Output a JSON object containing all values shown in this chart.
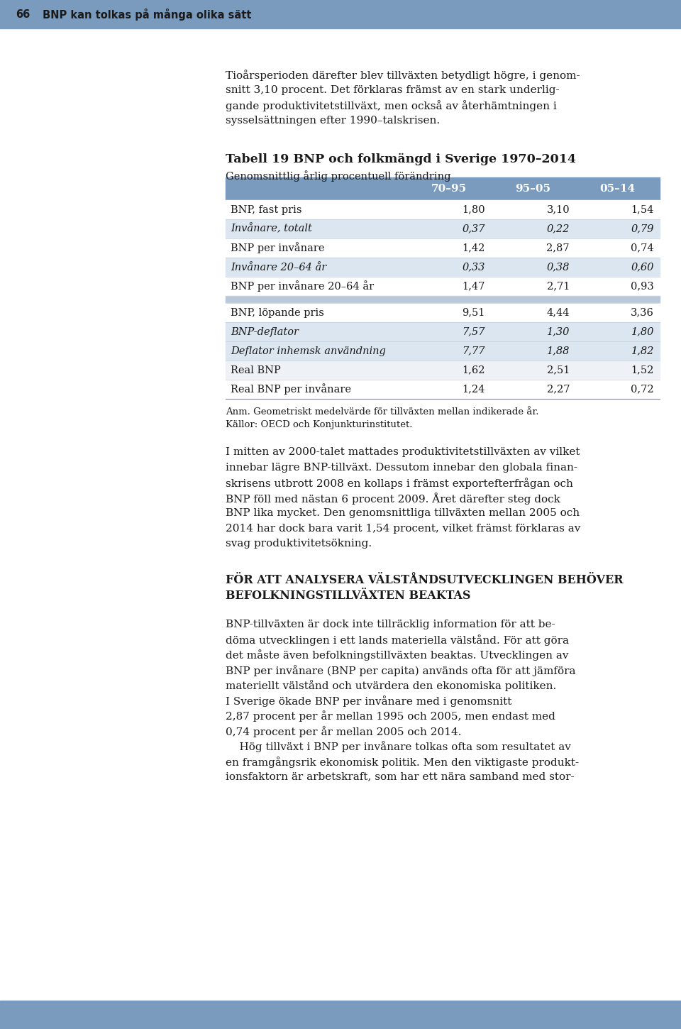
{
  "page_num": "66",
  "page_header": "BNP kan tolkas på många olika sätt",
  "header_bar_color": "#7a9bbe",
  "footer_bar_color": "#7a9bbe",
  "intro_text_lines": [
    "Tioårsperioden därefter blev tillväxten betydligt högre, i genom-",
    "snitt 3,10 procent. Det förklaras främst av en stark underlig-",
    "gande produktivitetstillväxt, men också av återhämtningen i",
    "sysselsättningen efter 1990–talskrisen."
  ],
  "table_title": "Tabell 19 BNP och folkmängd i Sverige 1970–2014",
  "table_subtitle": "Genomsnittlig årlig procentuell förändring",
  "table_header_color": "#7a9bbe",
  "table_header_text_color": "#ffffff",
  "table_alt_row_color": "#dce6f0",
  "table_white_row_color": "#ffffff",
  "table_light_row_color": "#eef2f7",
  "table_spacer_color": "#b8c8d8",
  "table_separator_color": "#c8d4de",
  "col_headers": [
    "",
    "70–95",
    "95–05",
    "05–14"
  ],
  "rows": [
    {
      "label": "BNP, fast pris",
      "vals": [
        "1,80",
        "3,10",
        "1,54"
      ],
      "italic": false,
      "bg": "white"
    },
    {
      "label": "Invånare, totalt",
      "vals": [
        "0,37",
        "0,22",
        "0,79"
      ],
      "italic": true,
      "bg": "alt"
    },
    {
      "label": "BNP per invånare",
      "vals": [
        "1,42",
        "2,87",
        "0,74"
      ],
      "italic": false,
      "bg": "white"
    },
    {
      "label": "Invånare 20–64 år",
      "vals": [
        "0,33",
        "0,38",
        "0,60"
      ],
      "italic": true,
      "bg": "alt"
    },
    {
      "label": "BNP per invånare 20–64 år",
      "vals": [
        "1,47",
        "2,71",
        "0,93"
      ],
      "italic": false,
      "bg": "white"
    },
    {
      "label": "",
      "vals": [
        "",
        "",
        ""
      ],
      "italic": false,
      "bg": "spacer"
    },
    {
      "label": "BNP, löpande pris",
      "vals": [
        "9,51",
        "4,44",
        "3,36"
      ],
      "italic": false,
      "bg": "white"
    },
    {
      "label": "BNP-deflator",
      "vals": [
        "7,57",
        "1,30",
        "1,80"
      ],
      "italic": true,
      "bg": "alt"
    },
    {
      "label": "Deflator inhemsk användning",
      "vals": [
        "7,77",
        "1,88",
        "1,82"
      ],
      "italic": true,
      "bg": "alt"
    },
    {
      "label": "Real BNP",
      "vals": [
        "1,62",
        "2,51",
        "1,52"
      ],
      "italic": false,
      "bg": "light"
    },
    {
      "label": "Real BNP per invånare",
      "vals": [
        "1,24",
        "2,27",
        "0,72"
      ],
      "italic": false,
      "bg": "white"
    }
  ],
  "anm_text": "Anm. Geometriskt medelvärde för tillväxten mellan indikerade år.",
  "kallor_text": "Källor: OECD och Konjunkturinstitutet.",
  "body_text_1_lines": [
    "I mitten av 2000-talet mattades produktivitetstillväxten av vilket",
    "innebar lägre BNP-tillväxt. Dessutom innebar den globala finan-",
    "skrisens utbrott 2008 en kollaps i främst exportefterfrågan och",
    "BNP föll med nästan 6 procent 2009. Året därefter steg dock",
    "BNP lika mycket. Den genomsnittliga tillväxten mellan 2005 och",
    "2014 har dock bara varit 1,54 procent, vilket främst förklaras av",
    "svag produktivitetsökning."
  ],
  "section_header_lines": [
    "FÖR ATT ANALYSERA VÄLSTÅNDSUTVECKLINGEN BEHÖVER",
    "BEFOLKNINGSTILLVÄXTEN BEAKTAS"
  ],
  "body_text_2_lines": [
    "BNP-tillväxten är dock inte tillräcklig information för att be-",
    "döma utvecklingen i ett lands materiella välstånd. För att göra",
    "det måste även befolkningstillväxten beaktas. Utvecklingen av",
    "BNP per invånare (BNP per capita) används ofta för att jämföra",
    "materiellt välstånd och utvärdera den ekonomiska politiken.",
    "I Sverige ökade BNP per invånare med i genomsnitt",
    "2,87 procent per år mellan 1995 och 2005, men endast med",
    "0,74 procent per år mellan 2005 och 2014.",
    "    Hög tillväxt i BNP per invånare tolkas ofta som resultatet av",
    "en framgångsrik ekonomisk politik. Men den viktigaste produkt-",
    "ionsfaktorn är arbetskraft, som har ett nära samband med stor-"
  ],
  "background_color": "#ffffff",
  "text_color": "#1a1a1a"
}
